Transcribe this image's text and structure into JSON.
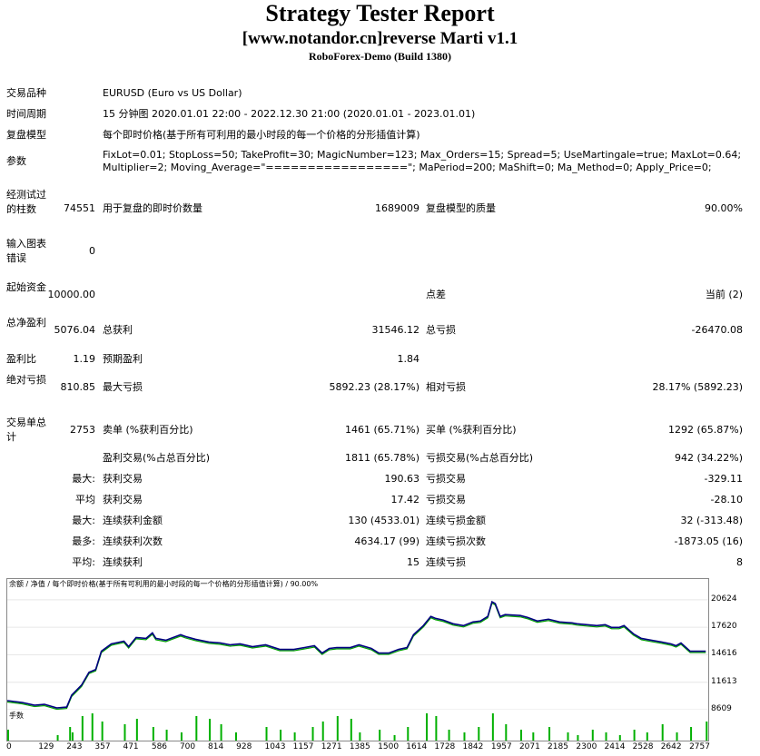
{
  "header": {
    "title": "Strategy Tester Report",
    "subtitle": "[www.notandor.cn]reverse Marti v1.1",
    "server": "RoboForex-Demo (Build 1380)"
  },
  "info": {
    "symbol_label": "交易品种",
    "symbol_value": "EURUSD (Euro vs US Dollar)",
    "period_label": "时间周期",
    "period_value": "15 分钟图 2020.01.01 22:00 - 2022.12.30 21:00 (2020.01.01 - 2023.01.01)",
    "model_label": "复盘模型",
    "model_value": "每个即时价格(基于所有可利用的最小时段的每一个价格的分形插值计算)",
    "params_label": "参数",
    "params_line1": "FixLot=0.01; StopLoss=50; TakeProfit=30; MagicNumber=123; Max_Orders=15; Spread=5; UseMartingale=true; MaxLot=0.64;",
    "params_line2": "Multiplier=2; Moving_Average=\"=================\"; MaPeriod=200; MaShift=0; Ma_Method=0; Apply_Price=0;"
  },
  "stats": {
    "bars_label": "经测试过的柱数",
    "bars_value": "74551",
    "ticks_label": "用于复盘的即时价数量",
    "ticks_value": "1689009",
    "quality_label": "复盘模型的质量",
    "quality_value": "90.00%",
    "errors_label": "输入图表错误",
    "errors_value": "0",
    "deposit_label": "起始资金",
    "deposit_value": "10000.00",
    "spread_label": "点差",
    "spread_value": "当前 (2)",
    "net_label": "总净盈利",
    "net_value": "5076.04",
    "gross_profit_label": "总获利",
    "gross_profit_value": "31546.12",
    "gross_loss_label": "总亏损",
    "gross_loss_value": "-26470.08",
    "pf_label": "盈利比",
    "pf_value": "1.19",
    "payoff_label": "预期盈利",
    "payoff_value": "1.84",
    "abs_dd_label": "绝对亏损",
    "abs_dd_value": "810.85",
    "max_dd_label": "最大亏损",
    "max_dd_value": "5892.23 (28.17%)",
    "rel_dd_label": "相对亏损",
    "rel_dd_value": "28.17% (5892.23)",
    "trades_label": "交易单总计",
    "trades_value": "2753",
    "short_label": "卖单 (%获利百分比)",
    "short_value": "1461 (65.71%)",
    "long_label": "买单 (%获利百分比)",
    "long_value": "1292 (65.87%)",
    "win_label": "盈利交易(%占总百分比)",
    "win_value": "1811 (65.78%)",
    "loss_label": "亏损交易(%占总百分比)",
    "loss_value": "942 (34.22%)",
    "largest_prefix": "最大:",
    "largest_win_label": "获利交易",
    "largest_win_value": "190.63",
    "largest_loss_label": "亏损交易",
    "largest_loss_value": "-329.11",
    "avg_prefix": "平均",
    "avg_win_label": "获利交易",
    "avg_win_value": "17.42",
    "avg_loss_label": "亏损交易",
    "avg_loss_value": "-28.10",
    "maxcons_prefix": "最大:",
    "maxcons_win_label": "连续获利金额",
    "maxcons_win_value": "130 (4533.01)",
    "maxcons_loss_label": "连续亏损金额",
    "maxcons_loss_value": "32 (-313.48)",
    "maxcons2_prefix": "最多:",
    "maxcons2_win_label": "连续获利次数",
    "maxcons2_win_value": "4634.17 (99)",
    "maxcons2_loss_label": "连续亏损次数",
    "maxcons2_loss_value": "-1873.05 (16)",
    "avgcons_prefix": "平均:",
    "avgcons_win_label": "连续获利",
    "avgcons_win_value": "15",
    "avgcons_loss_label": "连续亏损",
    "avgcons_loss_value": "8"
  },
  "chart_title": "余额 / 净值 / 每个即时价格(基于所有可利用的最小时段的每一个价格的分形插值计算) / 90.00%",
  "volume_label": "手数",
  "chart_data": {
    "type": "line",
    "yticks": [
      "20624",
      "17620",
      "14616",
      "11613",
      "8609"
    ],
    "xticks": [
      "0",
      "129",
      "243",
      "357",
      "471",
      "586",
      "700",
      "814",
      "928",
      "1043",
      "1157",
      "1271",
      "1385",
      "1500",
      "1614",
      "1728",
      "1842",
      "1957",
      "2071",
      "2185",
      "2300",
      "2414",
      "2528",
      "2642",
      "2757"
    ],
    "ylim": [
      8609,
      21500
    ],
    "xlim": [
      0,
      2830
    ],
    "colors": {
      "balance": "#000080",
      "equity": "#00a000",
      "volume": "#00b000"
    },
    "series": [
      {
        "name": "余额",
        "x": [
          0,
          60,
          110,
          150,
          200,
          240,
          260,
          300,
          330,
          357,
          380,
          420,
          471,
          490,
          520,
          560,
          586,
          600,
          640,
          700,
          720,
          760,
          814,
          860,
          900,
          940,
          990,
          1043,
          1100,
          1157,
          1200,
          1240,
          1271,
          1300,
          1330,
          1385,
          1420,
          1470,
          1500,
          1540,
          1580,
          1614,
          1640,
          1680,
          1710,
          1728,
          1760,
          1800,
          1842,
          1880,
          1910,
          1940,
          1957,
          1970,
          1990,
          2010,
          2071,
          2100,
          2140,
          2185,
          2230,
          2280,
          2300,
          2340,
          2380,
          2414,
          2440,
          2470,
          2490,
          2528,
          2560,
          2600,
          2642,
          2680,
          2700,
          2720,
          2757,
          2820
        ],
        "y": [
          9600,
          9400,
          9100,
          9200,
          8800,
          8900,
          10200,
          11300,
          12700,
          13000,
          15000,
          15800,
          16100,
          15500,
          16500,
          16400,
          17000,
          16400,
          16200,
          16800,
          16600,
          16300,
          16000,
          15900,
          15700,
          15800,
          15500,
          15700,
          15200,
          15200,
          15400,
          15600,
          14800,
          15300,
          15400,
          15400,
          15700,
          15300,
          14800,
          14800,
          15200,
          15400,
          16800,
          17800,
          18800,
          18600,
          18400,
          18000,
          17800,
          18200,
          18300,
          18800,
          20400,
          20200,
          18800,
          19000,
          18900,
          18700,
          18300,
          18500,
          18200,
          18100,
          18000,
          17900,
          17800,
          17900,
          17600,
          17600,
          17800,
          16900,
          16400,
          16200,
          16000,
          15800,
          15600,
          15900,
          15000,
          15000
        ]
      }
    ],
    "volume": {
      "x": [
        0,
        200,
        250,
        260,
        300,
        340,
        380,
        471,
        520,
        586,
        640,
        700,
        760,
        814,
        860,
        920,
        1043,
        1100,
        1157,
        1230,
        1271,
        1330,
        1385,
        1420,
        1500,
        1560,
        1614,
        1690,
        1728,
        1780,
        1842,
        1900,
        1957,
        2010,
        2071,
        2120,
        2185,
        2260,
        2300,
        2360,
        2414,
        2470,
        2528,
        2580,
        2642,
        2700,
        2757,
        2820
      ],
      "y": [
        0.4,
        0.2,
        0.5,
        0.3,
        0.9,
        1.0,
        0.7,
        0.6,
        0.8,
        0.5,
        0.4,
        0.3,
        0.9,
        0.8,
        0.6,
        0.3,
        0.5,
        0.4,
        0.3,
        0.5,
        0.7,
        0.9,
        0.8,
        0.3,
        0.4,
        0.2,
        0.5,
        1.0,
        0.9,
        0.4,
        0.3,
        0.5,
        1.0,
        0.6,
        0.4,
        0.3,
        0.5,
        0.3,
        0.2,
        0.4,
        0.3,
        0.2,
        0.4,
        0.3,
        0.6,
        0.3,
        0.5,
        0.7
      ]
    }
  }
}
